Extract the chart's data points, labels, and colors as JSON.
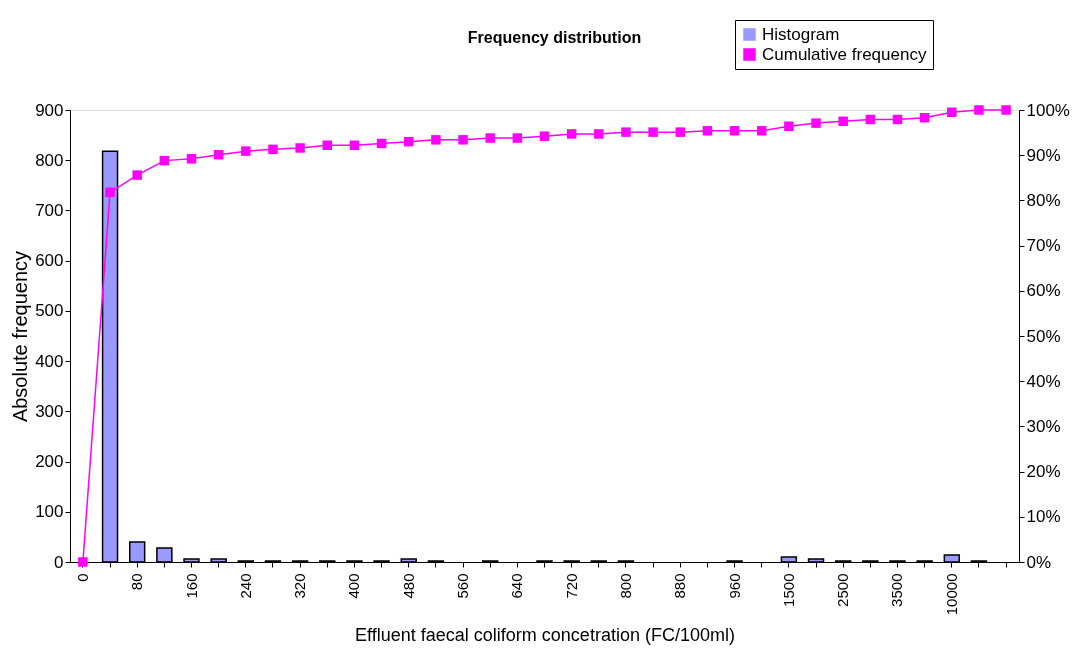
{
  "chart_data": {
    "type": "bar",
    "title": "Frequency distribution",
    "xlabel": "Effluent faecal coliform concetration (FC/100ml)",
    "ylabel": "Absolute frequency",
    "categories": [
      "0",
      null,
      "80",
      null,
      "160",
      null,
      "240",
      null,
      "320",
      null,
      "400",
      null,
      "480",
      null,
      "560",
      null,
      "640",
      null,
      "720",
      null,
      "800",
      null,
      "880",
      null,
      "960",
      null,
      "1500",
      null,
      "2500",
      null,
      "3500",
      null,
      "10000",
      null,
      null
    ],
    "series": [
      {
        "name": "Histogram",
        "color": "#9999ff",
        "values": [
          null,
          818,
          40,
          28,
          6,
          6,
          2,
          2,
          2,
          2,
          2,
          2,
          6,
          2,
          null,
          2,
          null,
          2,
          2,
          2,
          2,
          null,
          null,
          null,
          2,
          null,
          10,
          6,
          2,
          2,
          2,
          2,
          14,
          2,
          null
        ]
      },
      {
        "name": "Cumulative frequency",
        "type": "line",
        "axis": "y2",
        "color": "#ff00ff",
        "marker": "square",
        "values": [
          0,
          81.8,
          85.6,
          88.8,
          89.2,
          90.1,
          90.9,
          91.3,
          91.6,
          92.2,
          92.2,
          92.6,
          93.0,
          93.4,
          93.4,
          93.8,
          93.8,
          94.2,
          94.7,
          94.7,
          95.1,
          95.1,
          95.1,
          95.4,
          95.4,
          95.4,
          96.4,
          97.1,
          97.5,
          97.9,
          97.9,
          98.3,
          99.5,
          100,
          100
        ]
      }
    ],
    "ylim": [
      0,
      900
    ],
    "yticks": [
      0,
      100,
      200,
      300,
      400,
      500,
      600,
      700,
      800,
      900
    ],
    "y2lim": [
      0,
      100
    ],
    "y2ticks": [
      {
        "value": 0,
        "label": "0%"
      },
      {
        "value": 10,
        "label": "10%"
      },
      {
        "value": 20,
        "label": "20%"
      },
      {
        "value": 30,
        "label": "30%"
      },
      {
        "value": 40,
        "label": "40%"
      },
      {
        "value": 50,
        "label": "50%"
      },
      {
        "value": 60,
        "label": "60%"
      },
      {
        "value": 70,
        "label": "70%"
      },
      {
        "value": 80,
        "label": "80%"
      },
      {
        "value": 90,
        "label": "90%"
      },
      {
        "value": 100,
        "label": "100%"
      }
    ],
    "grid": false,
    "legend": "top right"
  }
}
